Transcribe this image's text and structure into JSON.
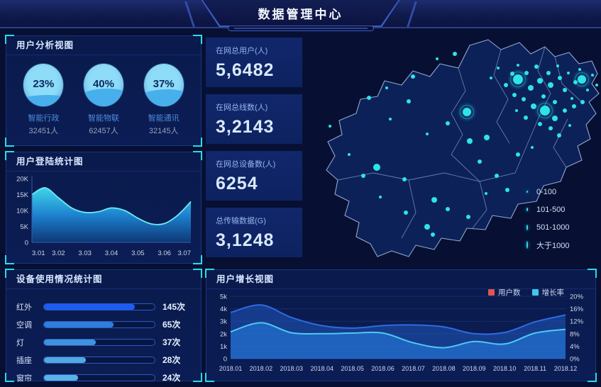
{
  "header": {
    "title": "数据管理中心"
  },
  "panels": {
    "user_analysis": {
      "title": "用户分析视图",
      "gauges": [
        {
          "percent": "23%",
          "value": 23,
          "label": "智能行政",
          "count": "32451人"
        },
        {
          "percent": "40%",
          "value": 40,
          "label": "智能物联",
          "count": "62457人"
        },
        {
          "percent": "37%",
          "value": 37,
          "label": "智能通讯",
          "count": "32145人"
        }
      ]
    },
    "login_stats": {
      "title": "用户登陆统计图"
    },
    "device_usage": {
      "title": "设备使用情况统计图"
    },
    "user_growth": {
      "title": "用户增长视图"
    }
  },
  "stats": {
    "cards": [
      {
        "label": "在网总用户(人)",
        "value": "5,6482"
      },
      {
        "label": "在网总线数(人)",
        "value": "3,2143"
      },
      {
        "label": "在网总设备数(人)",
        "value": "6254"
      },
      {
        "label": "总传输数据(G)",
        "value": "3,1248"
      }
    ]
  },
  "map_legend": [
    {
      "label": "0-100",
      "size": 3
    },
    {
      "label": "101-500",
      "size": 5
    },
    {
      "label": "501-1000",
      "size": 8
    },
    {
      "label": "大于1000",
      "size": 11
    }
  ],
  "chart_data": [
    {
      "id": "login",
      "type": "area",
      "title": "用户登陆统计图",
      "x_ticks": [
        "3.01",
        "3.02",
        "3.03",
        "3.04",
        "3.05",
        "3.06",
        "3.07"
      ],
      "y_ticks": [
        "0",
        "5K",
        "10K",
        "15K",
        "20K"
      ],
      "ylim": [
        0,
        20000
      ],
      "values_k": [
        15,
        17.1,
        14,
        10.8,
        9.4,
        9.6,
        10.8,
        10,
        7.6,
        5.8,
        5.9,
        8.5,
        12.8
      ],
      "line_color": "#6ceaf5",
      "gradient": [
        "#41dcef",
        "#1e86d4",
        "#0d3877"
      ],
      "grid": false
    },
    {
      "id": "devices",
      "type": "bar",
      "title": "设备使用情况统计图",
      "categories": [
        "红外",
        "空调",
        "灯",
        "插座",
        "窗帘"
      ],
      "values": [
        145,
        65,
        37,
        28,
        24
      ],
      "unit": "次",
      "value_labels": [
        "145次",
        "65次",
        "37次",
        "28次",
        "24次"
      ],
      "fill_percent": [
        82,
        63,
        47,
        38,
        31
      ],
      "bar_colors": [
        "#1c5cf2",
        "#2f7edc",
        "#3f92dd",
        "#52a8e0",
        "#5ab2e8"
      ]
    },
    {
      "id": "growth",
      "type": "area",
      "title": "用户增长视图",
      "categories": [
        "2018.01",
        "2018.02",
        "2018.03",
        "2018.04",
        "2018.05",
        "2018.06",
        "2018.07",
        "2018.08",
        "2018.09",
        "2018.10",
        "2018.11",
        "2018.12"
      ],
      "series": [
        {
          "name": "用户数",
          "axis": "left",
          "line_color": "#2e6be2",
          "area_color": "rgba(34,92,200,0.5)",
          "values": [
            3700,
            4300,
            3300,
            2650,
            2450,
            2650,
            2700,
            2550,
            2000,
            2100,
            2950,
            3500
          ]
        },
        {
          "name": "增长率",
          "axis": "right",
          "line_color": "#4fc8f5",
          "area_color": "rgba(38,130,230,0.55)",
          "values": [
            8.6,
            11.5,
            8.3,
            8.0,
            8.2,
            8.2,
            5.1,
            3.5,
            5.5,
            4.7,
            8.2,
            9.4
          ]
        }
      ],
      "left_ticks": [
        "0",
        "1k",
        "2k",
        "3k",
        "4k",
        "5k"
      ],
      "left_lim": [
        0,
        5000
      ],
      "right_ticks": [
        "0%",
        "4%",
        "8%",
        "12%",
        "16%",
        "20%"
      ],
      "right_lim": [
        0,
        20
      ],
      "legend": [
        {
          "name": "用户数",
          "color": "#e05555"
        },
        {
          "name": "增长率",
          "color": "#3fc8ee"
        }
      ],
      "legend_position": "top-right",
      "grid": true
    },
    {
      "id": "map",
      "type": "scatter",
      "dot_color": "#2ce4ea",
      "size_classes": [
        "0-100",
        "101-500",
        "501-1000",
        "大于1000"
      ],
      "points": [
        [
          300,
          64,
          7
        ],
        [
          338,
          108,
          7
        ],
        [
          390,
          64,
          6
        ],
        [
          228,
          110,
          6
        ],
        [
          262,
          62,
          2
        ],
        [
          272,
          48,
          2
        ],
        [
          283,
          72,
          3
        ],
        [
          292,
          56,
          3
        ],
        [
          300,
          44,
          2
        ],
        [
          312,
          55,
          3
        ],
        [
          318,
          76,
          4
        ],
        [
          326,
          46,
          3
        ],
        [
          331,
          66,
          4
        ],
        [
          336,
          88,
          3
        ],
        [
          343,
          55,
          3
        ],
        [
          346,
          72,
          4
        ],
        [
          352,
          96,
          3
        ],
        [
          356,
          45,
          2
        ],
        [
          359,
          62,
          3
        ],
        [
          366,
          79,
          3
        ],
        [
          371,
          55,
          2
        ],
        [
          376,
          91,
          2
        ],
        [
          381,
          68,
          3
        ],
        [
          387,
          50,
          2
        ],
        [
          398,
          79,
          2
        ],
        [
          405,
          58,
          2
        ],
        [
          322,
          102,
          4
        ],
        [
          308,
          92,
          3
        ],
        [
          295,
          86,
          3
        ],
        [
          352,
          119,
          4
        ],
        [
          366,
          108,
          3
        ],
        [
          379,
          102,
          3
        ],
        [
          391,
          96,
          3
        ],
        [
          331,
          127,
          3
        ],
        [
          346,
          133,
          3
        ],
        [
          311,
          118,
          3
        ],
        [
          298,
          108,
          2
        ],
        [
          358,
          143,
          3
        ],
        [
          373,
          129,
          2
        ],
        [
          411,
          72,
          2
        ],
        [
          101,
          188,
          5
        ],
        [
          182,
          234,
          4
        ],
        [
          140,
          205,
          3
        ],
        [
          120,
          120,
          2
        ],
        [
          146,
          95,
          3
        ],
        [
          172,
          141,
          2
        ],
        [
          201,
          126,
          3
        ],
        [
          232,
          151,
          4
        ],
        [
          256,
          146,
          4
        ],
        [
          62,
          170,
          2
        ],
        [
          82,
          200,
          3
        ],
        [
          106,
          230,
          2
        ],
        [
          142,
          252,
          3
        ],
        [
          172,
          272,
          4
        ],
        [
          201,
          247,
          3
        ],
        [
          230,
          258,
          3
        ],
        [
          180,
          283,
          3
        ],
        [
          152,
          60,
          3
        ],
        [
          186,
          35,
          2
        ],
        [
          211,
          28,
          3
        ],
        [
          90,
          90,
          3
        ],
        [
          115,
          76,
          2
        ],
        [
          35,
          130,
          2
        ],
        [
          246,
          180,
          3
        ],
        [
          270,
          200,
          3
        ],
        [
          300,
          170,
          3
        ],
        [
          320,
          160,
          2
        ],
        [
          255,
          225,
          2
        ],
        [
          285,
          220,
          3
        ]
      ]
    }
  ],
  "colors": {
    "background": "#071033",
    "panel": "#0a1c52",
    "bracket": "#2adbe8",
    "accent_cyan": "#2ce4ea",
    "card": "#10276b"
  }
}
